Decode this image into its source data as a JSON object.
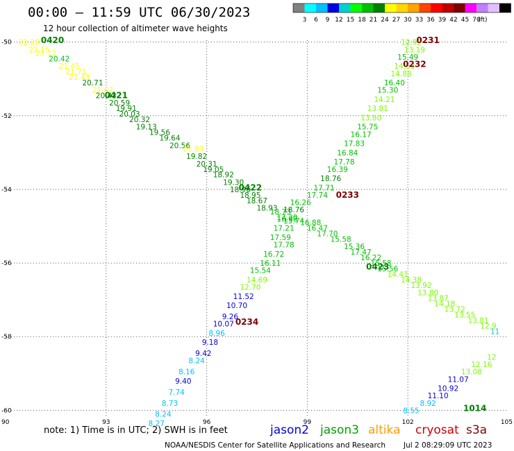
{
  "chart_data": {
    "type": "scatter",
    "title": "00:00 – 11:59 UTC 06/30/2023",
    "subtitle": "12 hour collection of altimeter wave heights",
    "x_ticks": [
      "90",
      "93",
      "96",
      "99",
      "102",
      "105"
    ],
    "y_ticks": [
      "-50",
      "-52",
      "-54",
      "-56",
      "-58",
      "-60"
    ],
    "xlim": [
      90,
      105
    ],
    "ylim": [
      -60.2,
      -49.95
    ],
    "grid": true,
    "colorbar": {
      "ticks": [
        "3",
        "6",
        "9",
        "12",
        "15",
        "18",
        "21",
        "24",
        "27",
        "30",
        "33",
        "36",
        "39",
        "42",
        "45",
        "70",
        "(ft)"
      ],
      "colors": [
        "#808080",
        "#00ffff",
        "#00bfff",
        "#0000e0",
        "#00d0d0",
        "#00ff00",
        "#00c000",
        "#008000",
        "#ffff00",
        "#ffd700",
        "#ffa500",
        "#ff4500",
        "#ff0000",
        "#c00000",
        "#800000",
        "#ff00ff",
        "#c080ff",
        "#e0c0ff",
        "#000000"
      ]
    },
    "labels": [
      {
        "lon": 90.7,
        "lat": -50.0,
        "text": "22.28",
        "color": "#ffff00"
      },
      {
        "lon": 91.0,
        "lat": -50.2,
        "text": "23.15",
        "color": "#ffff00"
      },
      {
        "lon": 91.2,
        "lat": -50.3,
        "text": "23.12",
        "color": "#ffff00"
      },
      {
        "lon": 91.6,
        "lat": -50.45,
        "text": "20.42",
        "color": "#00c000"
      },
      {
        "lon": 91.9,
        "lat": -50.65,
        "text": "21.45",
        "color": "#ffff00"
      },
      {
        "lon": 92.1,
        "lat": -50.8,
        "text": "21.71",
        "color": "#ffff00"
      },
      {
        "lon": 92.2,
        "lat": -50.95,
        "text": "21.43",
        "color": "#ffff00"
      },
      {
        "lon": 92.6,
        "lat": -51.1,
        "text": "20.71",
        "color": "#008000"
      },
      {
        "lon": 92.9,
        "lat": -51.3,
        "text": "21.67",
        "color": "#ffff00"
      },
      {
        "lon": 93.0,
        "lat": -51.45,
        "text": "20.42",
        "color": "#008000"
      },
      {
        "lon": 93.4,
        "lat": -51.65,
        "text": "20.59",
        "color": "#008000"
      },
      {
        "lon": 93.6,
        "lat": -51.8,
        "text": "19.91",
        "color": "#008000"
      },
      {
        "lon": 93.7,
        "lat": -51.95,
        "text": "20.03",
        "color": "#008000"
      },
      {
        "lon": 94.0,
        "lat": -52.1,
        "text": "20.32",
        "color": "#008000"
      },
      {
        "lon": 94.2,
        "lat": -52.3,
        "text": "19.13",
        "color": "#008000"
      },
      {
        "lon": 94.6,
        "lat": -52.45,
        "text": "19.56",
        "color": "#008000"
      },
      {
        "lon": 94.9,
        "lat": -52.6,
        "text": "19.64",
        "color": "#008000"
      },
      {
        "lon": 95.2,
        "lat": -52.8,
        "text": "20.56",
        "color": "#008000"
      },
      {
        "lon": 95.6,
        "lat": -52.9,
        "text": "21.83",
        "color": "#ffff00"
      },
      {
        "lon": 95.7,
        "lat": -53.1,
        "text": "19.82",
        "color": "#008000"
      },
      {
        "lon": 96.0,
        "lat": -53.3,
        "text": "20.31",
        "color": "#008000"
      },
      {
        "lon": 96.2,
        "lat": -53.45,
        "text": "19.05",
        "color": "#008000"
      },
      {
        "lon": 96.5,
        "lat": -53.6,
        "text": "18.92",
        "color": "#008000"
      },
      {
        "lon": 96.8,
        "lat": -53.8,
        "text": "19.30",
        "color": "#008000"
      },
      {
        "lon": 97.0,
        "lat": -54.0,
        "text": "18.96",
        "color": "#008000"
      },
      {
        "lon": 97.3,
        "lat": -54.15,
        "text": "18.95",
        "color": "#008000"
      },
      {
        "lon": 97.5,
        "lat": -54.3,
        "text": "18.67",
        "color": "#008000"
      },
      {
        "lon": 97.8,
        "lat": -54.5,
        "text": "18.93",
        "color": "#008000"
      },
      {
        "lon": 98.2,
        "lat": -54.6,
        "text": "18.73",
        "color": "#00c000"
      },
      {
        "lon": 98.4,
        "lat": -54.75,
        "text": "17.20",
        "color": "#00c000"
      },
      {
        "lon": 98.6,
        "lat": -54.85,
        "text": "15.74",
        "color": "#00c000"
      },
      {
        "lon": 99.1,
        "lat": -54.9,
        "text": "16.88",
        "color": "#00c000"
      },
      {
        "lon": 99.3,
        "lat": -55.05,
        "text": "16.47",
        "color": "#00c000"
      },
      {
        "lon": 99.6,
        "lat": -55.2,
        "text": "17.70",
        "color": "#00c000"
      },
      {
        "lon": 100.0,
        "lat": -55.35,
        "text": "15.58",
        "color": "#00c000"
      },
      {
        "lon": 100.4,
        "lat": -55.55,
        "text": "15.36",
        "color": "#00c000"
      },
      {
        "lon": 100.6,
        "lat": -55.7,
        "text": "17.47",
        "color": "#00c000"
      },
      {
        "lon": 100.9,
        "lat": -55.85,
        "text": "16.22",
        "color": "#00c000"
      },
      {
        "lon": 101.2,
        "lat": -56.0,
        "text": "15.58",
        "color": "#00c000"
      },
      {
        "lon": 101.4,
        "lat": -56.15,
        "text": "15.56",
        "color": "#00c000"
      },
      {
        "lon": 101.7,
        "lat": -56.3,
        "text": "14.41",
        "color": "#7cfc00"
      },
      {
        "lon": 102.1,
        "lat": -56.45,
        "text": "14.38",
        "color": "#7cfc00"
      },
      {
        "lon": 102.4,
        "lat": -56.6,
        "text": "13.92",
        "color": "#7cfc00"
      },
      {
        "lon": 102.6,
        "lat": -56.8,
        "text": "13.80",
        "color": "#7cfc00"
      },
      {
        "lon": 102.9,
        "lat": -56.95,
        "text": "13.87",
        "color": "#7cfc00"
      },
      {
        "lon": 103.1,
        "lat": -57.1,
        "text": "14.18",
        "color": "#7cfc00"
      },
      {
        "lon": 103.4,
        "lat": -57.25,
        "text": "13.72",
        "color": "#7cfc00"
      },
      {
        "lon": 103.7,
        "lat": -57.4,
        "text": "13.55",
        "color": "#7cfc00"
      },
      {
        "lon": 104.1,
        "lat": -57.55,
        "text": "13.81",
        "color": "#7cfc00"
      },
      {
        "lon": 104.4,
        "lat": -57.7,
        "text": "12.9",
        "color": "#7cfc00"
      },
      {
        "lon": 104.6,
        "lat": -57.85,
        "text": "11",
        "color": "#00d0d0"
      },
      {
        "lon": 102.1,
        "lat": -50.0,
        "text": "12.92",
        "color": "#7cfc00"
      },
      {
        "lon": 102.2,
        "lat": -50.2,
        "text": "13.19",
        "color": "#7cfc00"
      },
      {
        "lon": 102.0,
        "lat": -50.4,
        "text": "15.49",
        "color": "#00c000"
      },
      {
        "lon": 101.9,
        "lat": -50.65,
        "text": "14.53",
        "color": "#7cfc00"
      },
      {
        "lon": 101.8,
        "lat": -50.85,
        "text": "14.88",
        "color": "#7cfc00"
      },
      {
        "lon": 101.6,
        "lat": -51.1,
        "text": "16.40",
        "color": "#00c000"
      },
      {
        "lon": 101.4,
        "lat": -51.3,
        "text": "15.30",
        "color": "#00c000"
      },
      {
        "lon": 101.3,
        "lat": -51.55,
        "text": "14.21",
        "color": "#7cfc00"
      },
      {
        "lon": 101.1,
        "lat": -51.8,
        "text": "13.81",
        "color": "#7cfc00"
      },
      {
        "lon": 100.9,
        "lat": -52.05,
        "text": "13.80",
        "color": "#7cfc00"
      },
      {
        "lon": 100.8,
        "lat": -52.3,
        "text": "15.75",
        "color": "#00c000"
      },
      {
        "lon": 100.6,
        "lat": -52.5,
        "text": "16.17",
        "color": "#00c000"
      },
      {
        "lon": 100.4,
        "lat": -52.75,
        "text": "17.83",
        "color": "#00c000"
      },
      {
        "lon": 100.2,
        "lat": -53.0,
        "text": "16.84",
        "color": "#00c000"
      },
      {
        "lon": 100.1,
        "lat": -53.25,
        "text": "17.78",
        "color": "#00c000"
      },
      {
        "lon": 99.9,
        "lat": -53.45,
        "text": "16.39",
        "color": "#00c000"
      },
      {
        "lon": 99.7,
        "lat": -53.7,
        "text": "18.76",
        "color": "#008000"
      },
      {
        "lon": 99.5,
        "lat": -53.95,
        "text": "17.71",
        "color": "#00c000"
      },
      {
        "lon": 99.3,
        "lat": -54.15,
        "text": "17.74",
        "color": "#00c000"
      },
      {
        "lon": 98.8,
        "lat": -54.35,
        "text": "16.26",
        "color": "#00c000"
      },
      {
        "lon": 98.6,
        "lat": -54.55,
        "text": "18.76",
        "color": "#008000"
      },
      {
        "lon": 98.4,
        "lat": -54.8,
        "text": "16.98",
        "color": "#00c000"
      },
      {
        "lon": 98.3,
        "lat": -55.05,
        "text": "17.21",
        "color": "#00c000"
      },
      {
        "lon": 98.2,
        "lat": -55.3,
        "text": "17.59",
        "color": "#00c000"
      },
      {
        "lon": 98.3,
        "lat": -55.5,
        "text": "17.78",
        "color": "#00c000"
      },
      {
        "lon": 98.0,
        "lat": -55.75,
        "text": "16.72",
        "color": "#00c000"
      },
      {
        "lon": 97.9,
        "lat": -56.0,
        "text": "16.11",
        "color": "#00c000"
      },
      {
        "lon": 97.6,
        "lat": -56.2,
        "text": "15.54",
        "color": "#00c000"
      },
      {
        "lon": 97.5,
        "lat": -56.45,
        "text": "14.69",
        "color": "#7cfc00"
      },
      {
        "lon": 97.3,
        "lat": -56.65,
        "text": "12.70",
        "color": "#7cfc00"
      },
      {
        "lon": 97.1,
        "lat": -56.9,
        "text": "11.52",
        "color": "#0000e0"
      },
      {
        "lon": 96.9,
        "lat": -57.15,
        "text": "10.70",
        "color": "#0000e0"
      },
      {
        "lon": 96.7,
        "lat": -57.45,
        "text": "9.26",
        "color": "#0000e0"
      },
      {
        "lon": 96.5,
        "lat": -57.65,
        "text": "10.07",
        "color": "#0000e0"
      },
      {
        "lon": 96.3,
        "lat": -57.9,
        "text": "8.96",
        "color": "#00bfff"
      },
      {
        "lon": 96.1,
        "lat": -58.15,
        "text": "9.18",
        "color": "#0000e0"
      },
      {
        "lon": 95.9,
        "lat": -58.45,
        "text": "9.42",
        "color": "#0000e0"
      },
      {
        "lon": 95.7,
        "lat": -58.65,
        "text": "8.24",
        "color": "#00bfff"
      },
      {
        "lon": 95.4,
        "lat": -58.95,
        "text": "8.16",
        "color": "#00bfff"
      },
      {
        "lon": 95.3,
        "lat": -59.2,
        "text": "9.40",
        "color": "#0000e0"
      },
      {
        "lon": 95.1,
        "lat": -59.5,
        "text": "7.74",
        "color": "#00bfff"
      },
      {
        "lon": 94.9,
        "lat": -59.8,
        "text": "8.73",
        "color": "#00bfff"
      },
      {
        "lon": 94.7,
        "lat": -60.1,
        "text": "8.24",
        "color": "#00bfff"
      },
      {
        "lon": 94.5,
        "lat": -60.35,
        "text": "8.27",
        "color": "#00bfff"
      },
      {
        "lon": 102.1,
        "lat": -60.0,
        "text": "8.55",
        "color": "#00bfff"
      },
      {
        "lon": 102.6,
        "lat": -59.8,
        "text": "8.92",
        "color": "#00bfff"
      },
      {
        "lon": 102.9,
        "lat": -59.6,
        "text": "11.10",
        "color": "#0000e0"
      },
      {
        "lon": 103.2,
        "lat": -59.4,
        "text": "10.92",
        "color": "#0000e0"
      },
      {
        "lon": 103.5,
        "lat": -59.15,
        "text": "11.07",
        "color": "#0000e0"
      },
      {
        "lon": 103.9,
        "lat": -58.95,
        "text": "13.08",
        "color": "#7cfc00"
      },
      {
        "lon": 104.2,
        "lat": -58.75,
        "text": "12.16",
        "color": "#7cfc00"
      },
      {
        "lon": 104.5,
        "lat": -58.55,
        "text": "12",
        "color": "#7cfc00"
      }
    ],
    "time_labels": [
      {
        "lon": 91.4,
        "lat": -49.95,
        "text": "0420",
        "color": "#008000"
      },
      {
        "lon": 93.3,
        "lat": -51.45,
        "text": "0421",
        "color": "#008000"
      },
      {
        "lon": 97.3,
        "lat": -53.95,
        "text": "0422",
        "color": "#008000"
      },
      {
        "lon": 101.1,
        "lat": -56.1,
        "text": "0423",
        "color": "#008000"
      },
      {
        "lon": 102.6,
        "lat": -49.95,
        "text": "0231",
        "color": "#800000"
      },
      {
        "lon": 102.2,
        "lat": -50.6,
        "text": "0232",
        "color": "#800000"
      },
      {
        "lon": 100.2,
        "lat": -54.15,
        "text": "0233",
        "color": "#800000"
      },
      {
        "lon": 97.2,
        "lat": -57.6,
        "text": "0234",
        "color": "#800000"
      },
      {
        "lon": 104.0,
        "lat": -59.95,
        "text": "1014",
        "color": "#008000"
      }
    ]
  },
  "footer": {
    "note": "note: 1) Time is in UTC; 2) SWH is in feet",
    "credit": "NOAA/NESDIS Center for Satellite Applications and Research",
    "timestamp": "Jul  2 08:29:09 UTC 2023",
    "satellites": [
      {
        "name": "jason2",
        "color": "#0000e0"
      },
      {
        "name": "jason3",
        "color": "#00a000"
      },
      {
        "name": "altika",
        "color": "#ff9900"
      },
      {
        "name": "cryosat",
        "color": "#cc0000"
      },
      {
        "name": "s3a",
        "color": "#800000"
      }
    ]
  }
}
